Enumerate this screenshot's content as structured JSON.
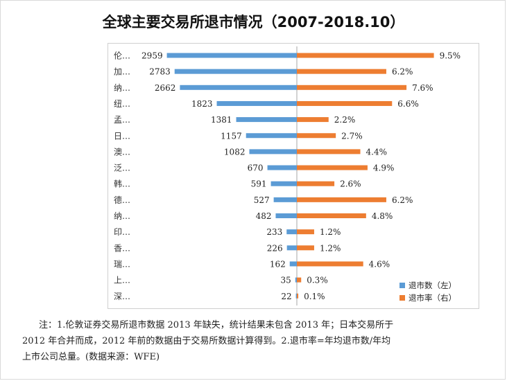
{
  "chart_data": {
    "type": "bar",
    "title": "全球主要交易所退市情况（2007-2018.10）",
    "categories": [
      "伦…",
      "加…",
      "纳…",
      "纽…",
      "孟…",
      "日…",
      "澳…",
      "泛…",
      "韩…",
      "德…",
      "纳…",
      "印…",
      "香…",
      "瑞…",
      "上…",
      "深…"
    ],
    "series": [
      {
        "name": "退市数（左）",
        "color": "#5b9bd5",
        "side": "left",
        "values": [
          2959,
          2783,
          2662,
          1823,
          1381,
          1157,
          1082,
          670,
          591,
          527,
          482,
          233,
          226,
          162,
          35,
          22
        ],
        "labels": [
          "2959",
          "2783",
          "2662",
          "1823",
          "1381",
          "1157",
          "1082",
          "670",
          "591",
          "527",
          "482",
          "233",
          "226",
          "162",
          "35",
          "22"
        ]
      },
      {
        "name": "退市率（右）",
        "color": "#ed7d31",
        "side": "right",
        "values": [
          9.5,
          6.2,
          7.6,
          6.6,
          2.2,
          2.7,
          4.4,
          4.9,
          2.6,
          6.2,
          4.8,
          1.2,
          1.2,
          4.6,
          0.3,
          0.1
        ],
        "labels": [
          "9.5%",
          "6.2%",
          "7.6%",
          "6.6%",
          "2.2%",
          "2.7%",
          "4.4%",
          "4.9%",
          "2.6%",
          "6.2%",
          "4.8%",
          "1.2%",
          "1.2%",
          "4.6%",
          "0.3%",
          "0.1%"
        ]
      }
    ],
    "left_max": 3000,
    "right_max": 10,
    "legend_position": "bottom-right",
    "grid": false
  },
  "note": {
    "line1": "注：1.伦敦证券交易所退市数据 2013 年缺失，统计结果未包含 2013 年；日本交易所于",
    "line2": "2012 年合并而成，2012 年前的数据由于交易所数据计算得到。2.退市率=年均退市数/年均",
    "line3": "上市公司总量。(数据来源：WFE)"
  }
}
